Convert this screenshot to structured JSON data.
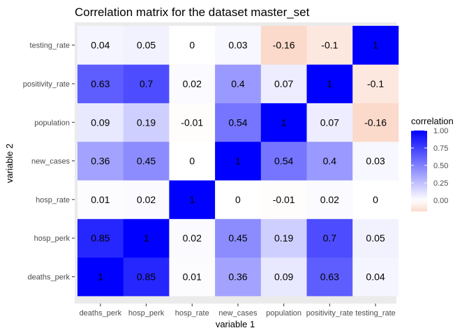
{
  "chart_data": {
    "type": "heatmap",
    "title": "Correlation matrix for the dataset master_set",
    "xlabel": "variable 1",
    "ylabel": "variable 2",
    "x_categories": [
      "deaths_perk",
      "hosp_perk",
      "hosp_rate",
      "new_cases",
      "population",
      "positivity_rate",
      "testing_rate"
    ],
    "y_categories": [
      "deaths_perk",
      "hosp_perk",
      "hosp_rate",
      "new_cases",
      "population",
      "positivity_rate",
      "testing_rate"
    ],
    "values": [
      [
        1,
        0.85,
        0.01,
        0.36,
        0.09,
        0.63,
        0.04
      ],
      [
        0.85,
        1,
        0.02,
        0.45,
        0.19,
        0.7,
        0.05
      ],
      [
        0.01,
        0.02,
        1,
        0,
        -0.01,
        0.02,
        0
      ],
      [
        0.36,
        0.45,
        0,
        1,
        0.54,
        0.4,
        0.03
      ],
      [
        0.09,
        0.19,
        -0.01,
        0.54,
        1,
        0.07,
        -0.16
      ],
      [
        0.63,
        0.7,
        0.02,
        0.4,
        0.07,
        1,
        -0.1
      ],
      [
        0.04,
        0.05,
        0,
        0.03,
        -0.16,
        -0.1,
        1
      ]
    ],
    "legend": {
      "title": "correlation",
      "position": "right",
      "ticks": [
        "1.00",
        "0.75",
        "0.50",
        "0.25",
        "0.00"
      ],
      "tick_values": [
        1,
        0.75,
        0.5,
        0.25,
        0
      ],
      "range": [
        -0.16,
        1
      ]
    },
    "colors": {
      "high": "#0000ff",
      "mid": "#ffffff",
      "low": "#fbdacb",
      "panel": "#ebebeb"
    },
    "grid": false
  }
}
